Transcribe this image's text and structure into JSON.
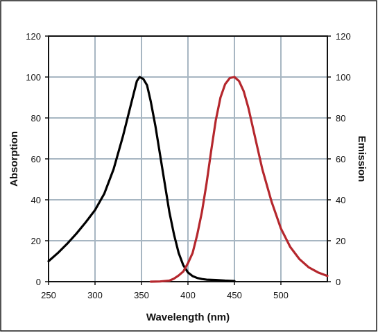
{
  "chart_data": {
    "type": "line",
    "title": "",
    "xlabel": "Wavelength (nm)",
    "ylabel_left": "Absorption",
    "ylabel_right": "Emission",
    "xlim": [
      250,
      550
    ],
    "ylim_left": [
      0,
      120
    ],
    "ylim_right": [
      0,
      120
    ],
    "x_ticks": [
      250,
      300,
      350,
      400,
      450,
      500
    ],
    "y_ticks": [
      0,
      20,
      40,
      60,
      80,
      100,
      120
    ],
    "grid": true,
    "grid_color": "#a7b6c2",
    "series": [
      {
        "axis": "left",
        "color": "#000000",
        "points": [
          [
            250,
            10
          ],
          [
            260,
            14
          ],
          [
            270,
            18.5
          ],
          [
            280,
            23.5
          ],
          [
            290,
            29
          ],
          [
            300,
            35
          ],
          [
            310,
            43
          ],
          [
            320,
            55
          ],
          [
            330,
            71
          ],
          [
            340,
            89
          ],
          [
            345,
            98
          ],
          [
            348,
            100
          ],
          [
            352,
            99
          ],
          [
            356,
            96
          ],
          [
            360,
            88
          ],
          [
            365,
            76
          ],
          [
            370,
            62
          ],
          [
            375,
            48
          ],
          [
            380,
            34
          ],
          [
            385,
            23
          ],
          [
            390,
            14
          ],
          [
            395,
            8
          ],
          [
            400,
            4.5
          ],
          [
            405,
            2.7
          ],
          [
            410,
            1.8
          ],
          [
            415,
            1.3
          ],
          [
            420,
            1.0
          ],
          [
            430,
            0.8
          ],
          [
            440,
            0.5
          ],
          [
            450,
            0.3
          ]
        ]
      },
      {
        "axis": "right",
        "color": "#b5272d",
        "points": [
          [
            360,
            0
          ],
          [
            370,
            0.1
          ],
          [
            380,
            0.5
          ],
          [
            385,
            1.5
          ],
          [
            390,
            3
          ],
          [
            395,
            5
          ],
          [
            400,
            9
          ],
          [
            405,
            14
          ],
          [
            410,
            23
          ],
          [
            415,
            34
          ],
          [
            420,
            48
          ],
          [
            425,
            64
          ],
          [
            430,
            79
          ],
          [
            435,
            90
          ],
          [
            440,
            96.5
          ],
          [
            445,
            99.5
          ],
          [
            450,
            100
          ],
          [
            455,
            98
          ],
          [
            460,
            93
          ],
          [
            465,
            85
          ],
          [
            470,
            75
          ],
          [
            475,
            65
          ],
          [
            480,
            55
          ],
          [
            490,
            39
          ],
          [
            500,
            26
          ],
          [
            510,
            17
          ],
          [
            520,
            11
          ],
          [
            530,
            7
          ],
          [
            540,
            4.5
          ],
          [
            550,
            2.8
          ]
        ]
      }
    ]
  }
}
